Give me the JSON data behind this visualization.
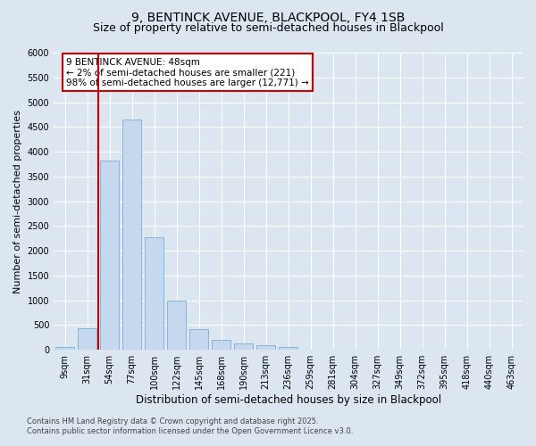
{
  "title1": "9, BENTINCK AVENUE, BLACKPOOL, FY4 1SB",
  "title2": "Size of property relative to semi-detached houses in Blackpool",
  "xlabel": "Distribution of semi-detached houses by size in Blackpool",
  "ylabel": "Number of semi-detached properties",
  "categories": [
    "9sqm",
    "31sqm",
    "54sqm",
    "77sqm",
    "100sqm",
    "122sqm",
    "145sqm",
    "168sqm",
    "190sqm",
    "213sqm",
    "236sqm",
    "259sqm",
    "281sqm",
    "304sqm",
    "327sqm",
    "349sqm",
    "372sqm",
    "395sqm",
    "418sqm",
    "440sqm",
    "463sqm"
  ],
  "values": [
    50,
    430,
    3820,
    4650,
    2280,
    1000,
    420,
    200,
    130,
    100,
    60,
    10,
    5,
    2,
    1,
    1,
    0,
    0,
    0,
    0,
    0
  ],
  "bar_color": "#c5d8ee",
  "bar_edge_color": "#7aadd4",
  "vline_x": 1.5,
  "vline_color": "#cc0000",
  "ylim": [
    0,
    6000
  ],
  "yticks": [
    0,
    500,
    1000,
    1500,
    2000,
    2500,
    3000,
    3500,
    4000,
    4500,
    5000,
    5500,
    6000
  ],
  "annotation_text": "9 BENTINCK AVENUE: 48sqm\n← 2% of semi-detached houses are smaller (221)\n98% of semi-detached houses are larger (12,771) →",
  "annotation_box_color": "#cc0000",
  "footnote1": "Contains HM Land Registry data © Crown copyright and database right 2025.",
  "footnote2": "Contains public sector information licensed under the Open Government Licence v3.0.",
  "bg_color": "#dce6f1",
  "plot_bg_color": "#dce6f1",
  "title1_fontsize": 10,
  "title2_fontsize": 9,
  "tick_fontsize": 7,
  "ylabel_fontsize": 8,
  "xlabel_fontsize": 8.5,
  "footnote_fontsize": 6,
  "annotation_fontsize": 7.5
}
